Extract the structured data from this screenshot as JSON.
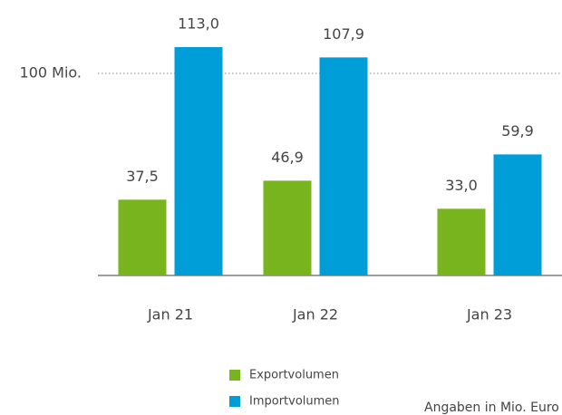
{
  "chart_data": {
    "type": "bar",
    "categories": [
      "Jan 21",
      "Jan 22",
      "Jan 23"
    ],
    "series": [
      {
        "name": "Exportvolumen",
        "color": "#78b41e",
        "values": [
          37.5,
          46.9,
          33.0
        ],
        "value_labels": [
          "37,5",
          "46,9",
          "33,0"
        ]
      },
      {
        "name": "Importvolumen",
        "color": "#009ed8",
        "values": [
          113.0,
          107.9,
          59.9
        ],
        "value_labels": [
          "113,0",
          "107,9",
          "59,9"
        ]
      }
    ],
    "ylim": [
      0,
      136
    ],
    "yticks": [
      {
        "value": 100,
        "label": "100 Mio."
      }
    ],
    "grid": true,
    "note": "Angaben in Mio. Euro"
  }
}
